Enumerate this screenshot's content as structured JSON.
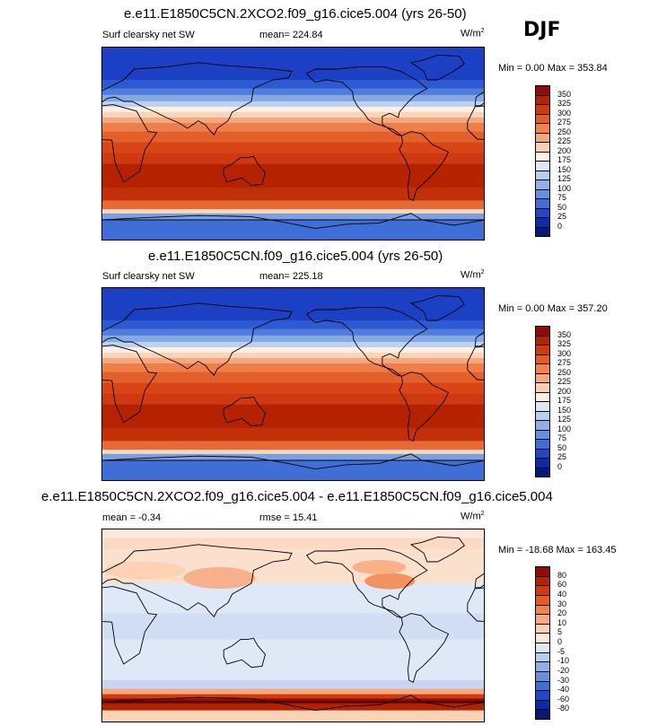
{
  "season": "DJF",
  "panels": [
    {
      "title": "e.e11.E1850C5CN.2XCO2.f09_g16.cice5.004 (yrs 26-50)",
      "left_label": "Surf clearsky net SW",
      "center_label": "mean= 224.84",
      "units_base": "W/m",
      "units_exp": "2",
      "minmax": "Min =   0.00 Max = 353.84",
      "colorbar": {
        "labels": [
          "350",
          "325",
          "300",
          "275",
          "250",
          "225",
          "200",
          "175",
          "150",
          "125",
          "100",
          "75",
          "50",
          "25",
          "0"
        ],
        "colors": [
          "#8f0d06",
          "#b52200",
          "#d13a0c",
          "#e55c23",
          "#f2834a",
          "#f8a87b",
          "#fbcfb0",
          "#fdf0e3",
          "#dfe8f6",
          "#b9cdee",
          "#8fb0e6",
          "#6690dc",
          "#3f6fd6",
          "#2048c8",
          "#0f2aa8",
          "#071a78"
        ]
      },
      "map": {
        "variant": "abs",
        "mean": 224.84,
        "min": 0.0,
        "max": 353.84
      }
    },
    {
      "title": "e.e11.E1850C5CN.f09_g16.cice5.004 (yrs 26-50)",
      "left_label": "Surf clearsky net SW",
      "center_label": "mean= 225.18",
      "units_base": "W/m",
      "units_exp": "2",
      "minmax": "Min =   0.00 Max = 357.20",
      "colorbar": {
        "labels": [
          "350",
          "325",
          "300",
          "275",
          "250",
          "225",
          "200",
          "175",
          "150",
          "125",
          "100",
          "75",
          "50",
          "25",
          "0"
        ],
        "colors": [
          "#8f0d06",
          "#b52200",
          "#d13a0c",
          "#e55c23",
          "#f2834a",
          "#f8a87b",
          "#fbcfb0",
          "#fdf0e3",
          "#dfe8f6",
          "#b9cdee",
          "#8fb0e6",
          "#6690dc",
          "#3f6fd6",
          "#2048c8",
          "#0f2aa8",
          "#071a78"
        ]
      },
      "map": {
        "variant": "abs",
        "mean": 225.18,
        "min": 0.0,
        "max": 357.2
      }
    },
    {
      "title": "e.e11.E1850C5CN.2XCO2.f09_g16.cice5.004 - e.e11.E1850C5CN.f09_g16.cice5.004",
      "left_label": "mean =  -0.34",
      "center_label": "rmse =  15.41",
      "units_base": "W/m",
      "units_exp": "2",
      "minmax": "Min = -18.68 Max = 163.45",
      "colorbar": {
        "labels": [
          "80",
          "60",
          "40",
          "30",
          "20",
          "10",
          "5",
          "0",
          "-5",
          "-10",
          "-20",
          "-30",
          "-40",
          "-60",
          "-80"
        ],
        "colors": [
          "#8f0d06",
          "#b52200",
          "#d13a0c",
          "#e55c23",
          "#f2834a",
          "#f8a87b",
          "#fbcfb0",
          "#fde9dc",
          "#dfe8f6",
          "#b9cdee",
          "#8fb0e6",
          "#6690dc",
          "#3f6fd6",
          "#2048c8",
          "#0f2aa8",
          "#071a78"
        ]
      },
      "map": {
        "variant": "diff",
        "mean": -0.34,
        "rmse": 15.41,
        "min": -18.68,
        "max": 163.45
      }
    }
  ]
}
